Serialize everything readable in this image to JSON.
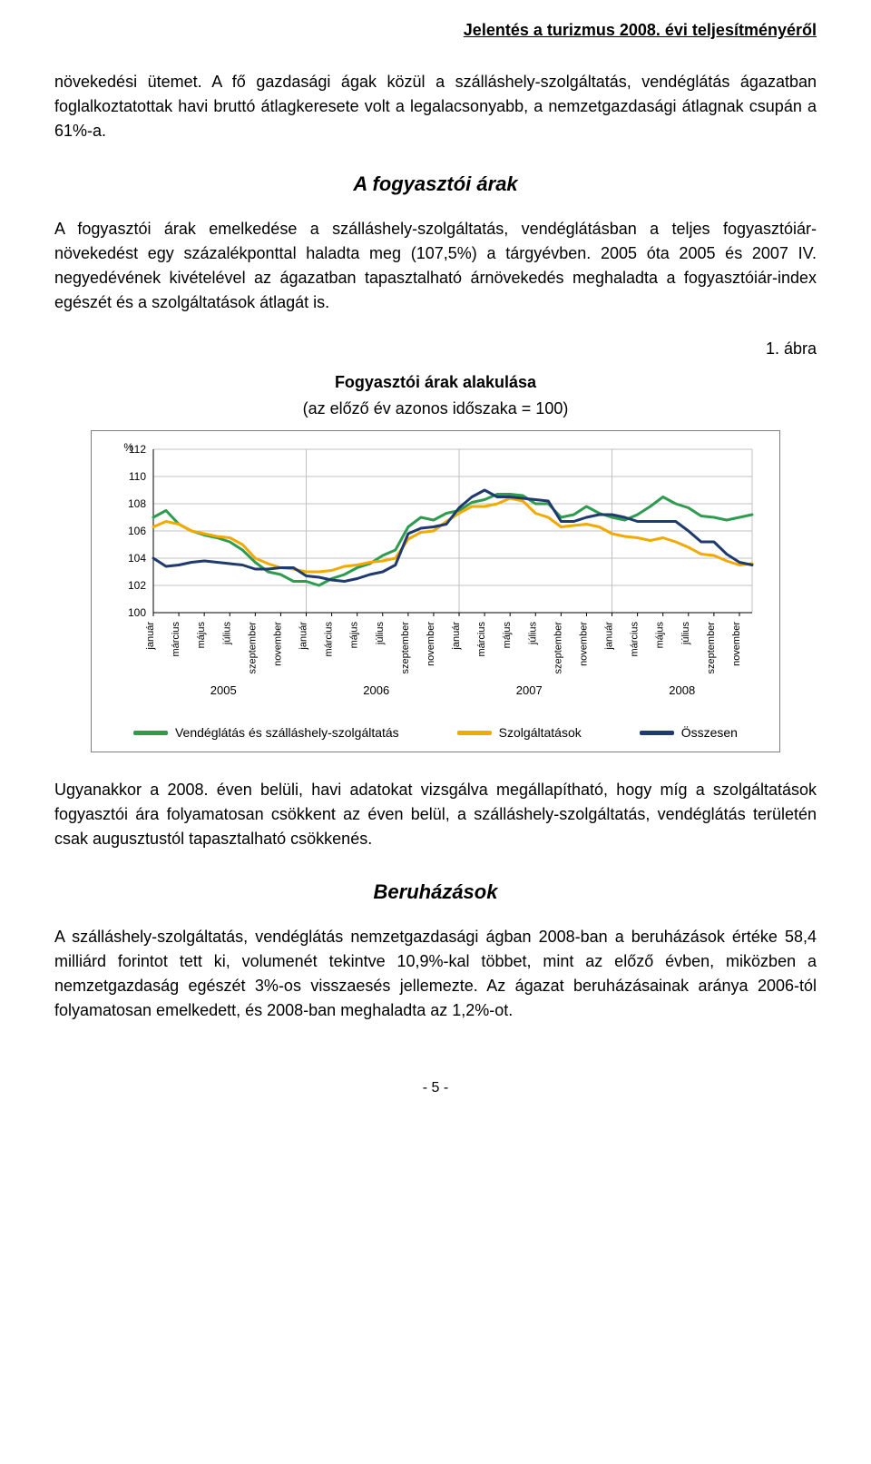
{
  "header": {
    "title": "Jelentés a turizmus 2008. évi teljesítményéről"
  },
  "para1": "növekedési ütemet. A fő gazdasági ágak közül a szálláshely-szolgáltatás, vendéglátás ágazatban foglalkoztatottak havi bruttó átlagkeresete volt a legalacsonyabb, a nemzetgazdasági átlagnak csupán a 61%-a.",
  "section1_title": "A fogyasztói árak",
  "para2": "A fogyasztói árak emelkedése a szálláshely-szolgáltatás, vendéglátásban a teljes fogyasztóiár-növekedést egy százalékponttal haladta meg (107,5%) a tárgyévben. 2005 óta 2005 és 2007 IV. negyedévének kivételével az ágazatban tapasztalható árnövekedés meghaladta a fogyasztóiár-index egészét és a szolgáltatások átlagát is.",
  "abra_label": "1. ábra",
  "chart": {
    "caption": "Fogyasztói árak alakulása",
    "subcaption": "(az előző év azonos időszaka = 100)",
    "type": "line",
    "y_unit_label": "%",
    "ylim": [
      100,
      112
    ],
    "ytick_step": 2,
    "yticks": [
      100,
      102,
      104,
      106,
      108,
      110,
      112
    ],
    "background_color": "#ffffff",
    "grid_color": "#c0c0c0",
    "axis_color": "#000000",
    "label_fontsize": 12,
    "tick_fontsize": 12,
    "line_width": 3,
    "series": [
      {
        "name": "Vendéglátás és szálláshely-szolgáltatás",
        "color": "#2e9b4f",
        "values": [
          107.0,
          107.5,
          106.5,
          106.0,
          105.7,
          105.5,
          105.2,
          104.6,
          103.7,
          103.0,
          102.8,
          102.3,
          102.3,
          102.0,
          102.5,
          102.8,
          103.3,
          103.6,
          104.2,
          104.6,
          106.3,
          107.0,
          106.8,
          107.3,
          107.5,
          108.1,
          108.3,
          108.7,
          108.7,
          108.6,
          108.0,
          108.0,
          107.0,
          107.2,
          107.8,
          107.3,
          107.0,
          106.8,
          107.2,
          107.8,
          108.5,
          108.0,
          107.7,
          107.1,
          107.0,
          106.8,
          107.0,
          107.2
        ]
      },
      {
        "name": "Szolgáltatások",
        "color": "#f2a900",
        "values": [
          106.3,
          106.7,
          106.5,
          106.0,
          105.8,
          105.6,
          105.5,
          105.0,
          104.0,
          103.6,
          103.3,
          103.2,
          103.0,
          103.0,
          103.1,
          103.4,
          103.5,
          103.7,
          103.8,
          104.0,
          105.4,
          105.9,
          106.0,
          106.7,
          107.3,
          107.8,
          107.8,
          108.0,
          108.4,
          108.2,
          107.3,
          107.0,
          106.3,
          106.4,
          106.5,
          106.3,
          105.8,
          105.6,
          105.5,
          105.3,
          105.5,
          105.2,
          104.8,
          104.3,
          104.2,
          103.8,
          103.5,
          103.6
        ]
      },
      {
        "name": "Összesen",
        "color": "#1f3a6e",
        "values": [
          104.0,
          103.4,
          103.5,
          103.7,
          103.8,
          103.7,
          103.6,
          103.5,
          103.2,
          103.2,
          103.3,
          103.3,
          102.7,
          102.6,
          102.4,
          102.3,
          102.5,
          102.8,
          103.0,
          103.5,
          105.8,
          106.2,
          106.3,
          106.5,
          107.7,
          108.5,
          109.0,
          108.5,
          108.5,
          108.4,
          108.3,
          108.2,
          106.7,
          106.7,
          107.0,
          107.2,
          107.2,
          107.0,
          106.7,
          106.7,
          106.7,
          106.7,
          106.0,
          105.2,
          105.2,
          104.3,
          103.7,
          103.5
        ]
      }
    ],
    "x_months": [
      "január",
      "március",
      "május",
      "július",
      "szeptember",
      "november"
    ],
    "x_years": [
      "2005",
      "2006",
      "2007",
      "2008"
    ]
  },
  "para3": "Ugyanakkor a 2008. éven belüli, havi adatokat vizsgálva megállapítható, hogy míg a szolgáltatások fogyasztói ára folyamatosan csökkent az éven belül, a szálláshely-szolgáltatás, vendéglátás területén csak augusztustól tapasztalható csökkenés.",
  "section2_title": "Beruházások",
  "para4": "A szálláshely-szolgáltatás, vendéglátás nemzetgazdasági ágban 2008-ban a beruházások értéke 58,4 milliárd forintot tett ki, volumenét tekintve 10,9%-kal többet, mint az előző évben, miközben a nemzetgazdaság egészét 3%-os visszaesés jellemezte. Az ágazat beruházásainak aránya 2006-tól folyamatosan emelkedett, és 2008-ban meghaladta az 1,2%-ot.",
  "footer_page": "- 5 -"
}
